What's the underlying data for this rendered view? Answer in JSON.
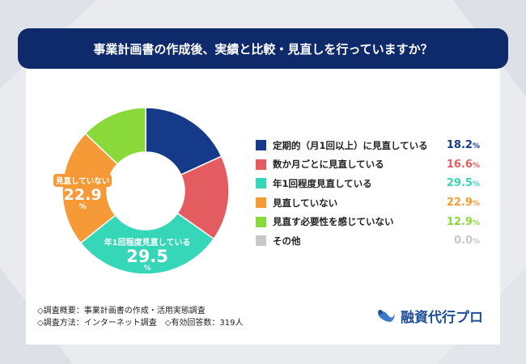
{
  "title": "事業計画書の作成後、実績と比較・見直しを行っていますか？",
  "chart_data": {
    "type": "pie",
    "title": "事業計画書の作成後、実績と比較・見直しを行っていますか？",
    "donut": true,
    "unit": "%",
    "categories": [
      "定期的（月1回以上）に見直している",
      "数か月ごとに見直している",
      "年1回程度見直している",
      "見直していない",
      "見直す必要性を感じていない",
      "その他"
    ],
    "values": [
      18.2,
      16.6,
      29.5,
      22.9,
      12.9,
      0.0
    ],
    "colors": [
      "#163a8a",
      "#e35d60",
      "#36d6b8",
      "#f59a36",
      "#8ad93a",
      "#c8c8c8"
    ],
    "legend_placement": "right"
  },
  "labels": {
    "teal_label": "年1回程度見直している",
    "teal_value": "29.5",
    "orange_label": "見直していない",
    "orange_value": "22.9",
    "pct": "%"
  },
  "footer": {
    "line1": "◇調査概要：事業計画書の作成・活用実態調査",
    "line2": "◇調査方法：インターネット調査　◇有効回答数：319人"
  },
  "logo": "融資代行プロ"
}
